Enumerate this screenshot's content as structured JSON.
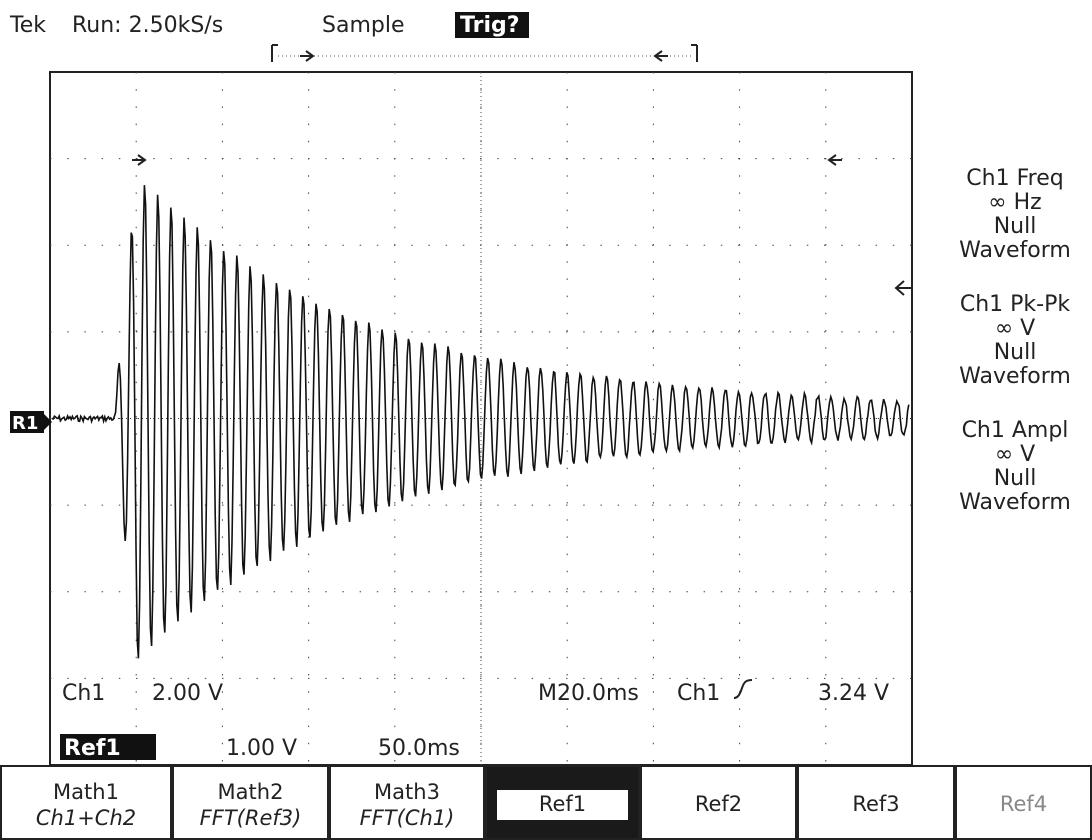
{
  "header": {
    "brand": "Tek",
    "status": "Run: 2.50kS/s",
    "mode": "Sample",
    "trigger": "Trig?"
  },
  "marker": "R1",
  "readouts": {
    "ch1": "Ch1",
    "ch1_scale": "2.00 V",
    "timebase": "M20.0ms",
    "trigger_source": "Ch1",
    "trigger_level": "3.24 V",
    "ref1": "Ref1",
    "ref1_scale": "1.00 V",
    "ref1_time": "50.0ms"
  },
  "measurements": [
    {
      "title": "Ch1 Freq",
      "value": "∞ Hz",
      "line1": "Null",
      "line2": "Waveform"
    },
    {
      "title": "Ch1 Pk-Pk",
      "value": "∞ V",
      "line1": "Null",
      "line2": "Waveform"
    },
    {
      "title": "Ch1 Ampl",
      "value": "∞ V",
      "line1": "Null",
      "line2": "Waveform"
    }
  ],
  "menu": [
    {
      "label": "Math1",
      "sub": "Ch1+Ch2"
    },
    {
      "label": "Math2",
      "sub": "FFT(Ref3)"
    },
    {
      "label": "Math3",
      "sub": "FFT(Ch1)"
    },
    {
      "label": "Ref1"
    },
    {
      "label": "Ref2"
    },
    {
      "label": "Ref3"
    },
    {
      "label": "Ref4"
    }
  ]
}
